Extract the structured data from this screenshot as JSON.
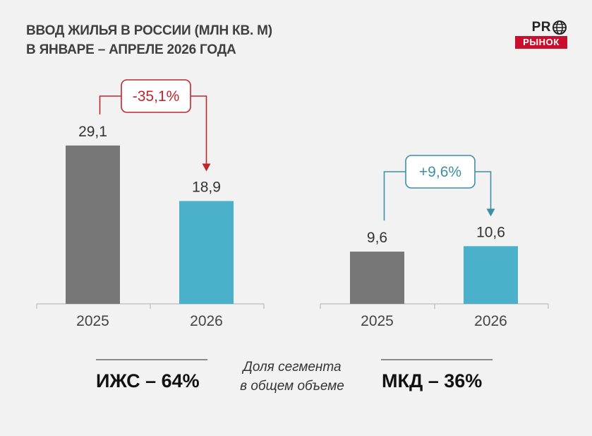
{
  "title_lines": [
    "ВВОД ЖИЛЬЯ В РОССИИ (МЛН КВ. М)",
    "В ЯНВАРЕ – АПРЕЛЕ 2026 ГОДА"
  ],
  "logo": {
    "top": "PR",
    "bottom": "РЫНОК",
    "icon": "globe-icon"
  },
  "colors": {
    "bar_2025": "#777777",
    "bar_2026": "#4bb0c9",
    "down": "#c0272d",
    "up": "#3e8ea5",
    "axis": "#bdbdbd"
  },
  "chart_data": [
    {
      "type": "bar",
      "categories": [
        "2025",
        "2026"
      ],
      "values": [
        29.1,
        18.9
      ],
      "value_labels": [
        "29,1",
        "18,9"
      ],
      "change_label": "-35,1%",
      "change_direction": "down"
    },
    {
      "type": "bar",
      "categories": [
        "2025",
        "2026"
      ],
      "values": [
        9.6,
        10.6
      ],
      "value_labels": [
        "9,6",
        "10,6"
      ],
      "change_label": "+9,6%",
      "change_direction": "up"
    }
  ],
  "footer": {
    "left": "ИЖС – 64%",
    "share_lines": [
      "Доля сегмента",
      "в общем объеме"
    ],
    "right": "МКД – 36%"
  }
}
